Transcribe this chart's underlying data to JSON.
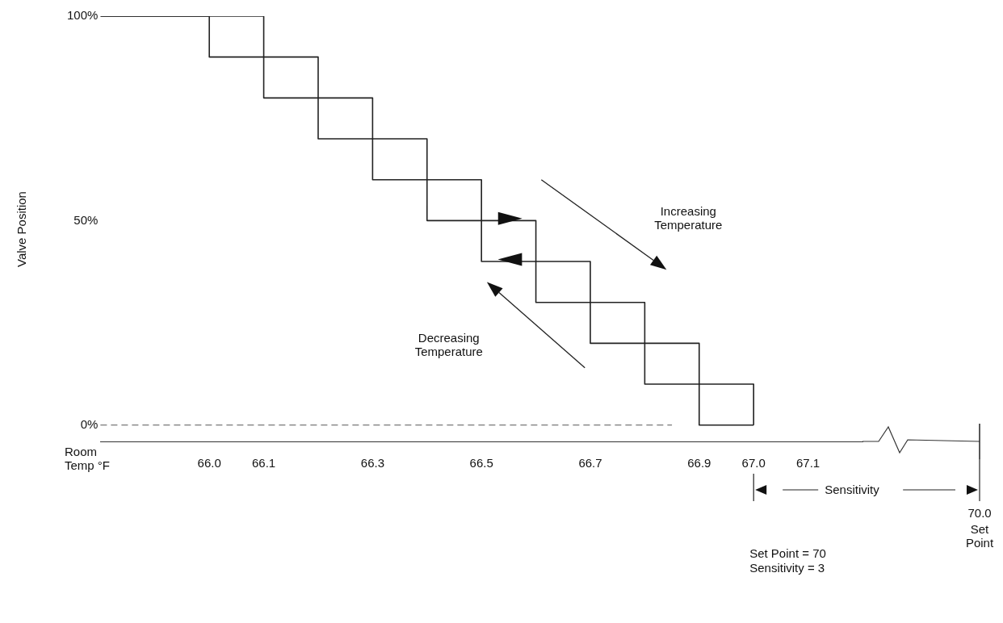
{
  "chart_data": {
    "type": "step",
    "xlabel": "Room Temp °F",
    "ylabel": "Valve Position",
    "series": [
      {
        "color": "#222222",
        "x": [
          65.8,
          66.1,
          66.2,
          66.3,
          66.4,
          66.5,
          66.6,
          66.7,
          66.8,
          66.9,
          67.0
        ],
        "values": [
          100,
          90,
          80,
          70,
          60,
          50,
          40,
          30,
          20,
          10,
          0
        ]
      },
      {
        "color": "#222222",
        "x": [
          65.8,
          66.0,
          66.1,
          66.2,
          66.3,
          66.4,
          66.5,
          66.6,
          66.7,
          66.8,
          66.9,
          67.0
        ],
        "values": [
          100,
          90,
          80,
          70,
          60,
          50,
          40,
          30,
          20,
          10,
          0,
          0
        ]
      }
    ],
    "xlim": [
      65.8,
      67.2
    ],
    "xticks": [
      {
        "value": 66,
        "label": "66.0"
      },
      66.1,
      66.3,
      66.5,
      66.7,
      66.9,
      {
        "value": 67,
        "label": "67.0"
      },
      67.1
    ],
    "ylim": [
      -4,
      100
    ],
    "yticks": [
      {
        "value": 0,
        "label": "0%"
      },
      {
        "value": 50,
        "label": "50%"
      },
      {
        "value": 100,
        "label": "100%"
      }
    ],
    "ref_lines": [
      {
        "axis": "y",
        "value": 0,
        "color": "#555555",
        "line_style": "dashed"
      }
    ],
    "annotations": [
      "Increasing Temperature",
      "Decreasing Temperature",
      "Sensitivity",
      "70.0",
      "Set Point",
      "Set Point = 70",
      "Sensitivity = 3"
    ],
    "grid": false,
    "legend": false
  }
}
